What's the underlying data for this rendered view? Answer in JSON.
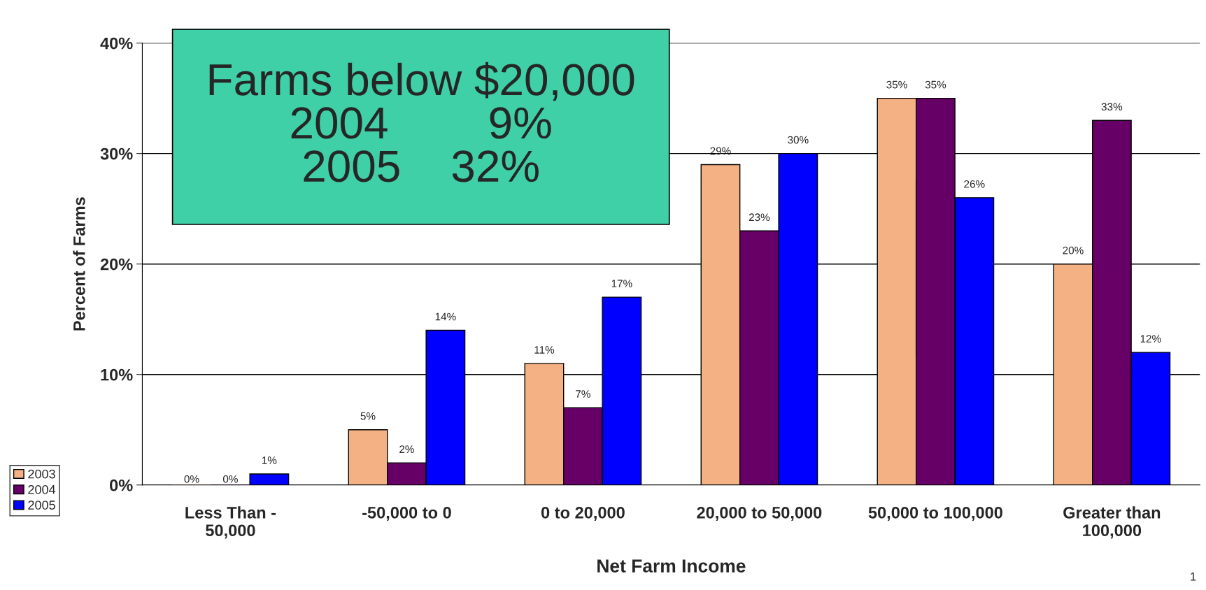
{
  "chart_data": {
    "type": "bar",
    "xlabel": "Net Farm Income",
    "ylabel": "Percent of Farms",
    "categories": [
      "Less Than -\n50,000",
      "-50,000 to 0",
      "0 to 20,000",
      "20,000 to 50,000",
      "50,000 to 100,000",
      "Greater than\n100,000"
    ],
    "series": [
      {
        "name": "2003",
        "color": "#f4b183",
        "values": [
          0,
          5,
          11,
          29,
          35,
          20
        ],
        "value_labels": [
          "0%",
          "5%",
          "11%",
          "29%",
          "35%",
          "20%"
        ]
      },
      {
        "name": "2004",
        "color": "#660066",
        "values": [
          0,
          2,
          7,
          23,
          35,
          33
        ],
        "value_labels": [
          "0%",
          "2%",
          "7%",
          "23%",
          "35%",
          "33%"
        ]
      },
      {
        "name": "2005",
        "color": "#0000ff",
        "values": [
          1,
          14,
          17,
          30,
          26,
          12
        ],
        "value_labels": [
          "1%",
          "14%",
          "17%",
          "30%",
          "26%",
          "12%"
        ]
      }
    ],
    "ylim": [
      0,
      40
    ],
    "yticks": [
      {
        "value": 0,
        "label": "0%"
      },
      {
        "value": 10,
        "label": "10%"
      },
      {
        "value": 20,
        "label": "20%"
      },
      {
        "value": 30,
        "label": "30%"
      },
      {
        "value": 40,
        "label": "40%"
      }
    ],
    "grid": "y",
    "legend": "bottom left",
    "annotations": [
      "Farms below $20,000\n2004        9%\n2005    32%",
      "1"
    ]
  }
}
